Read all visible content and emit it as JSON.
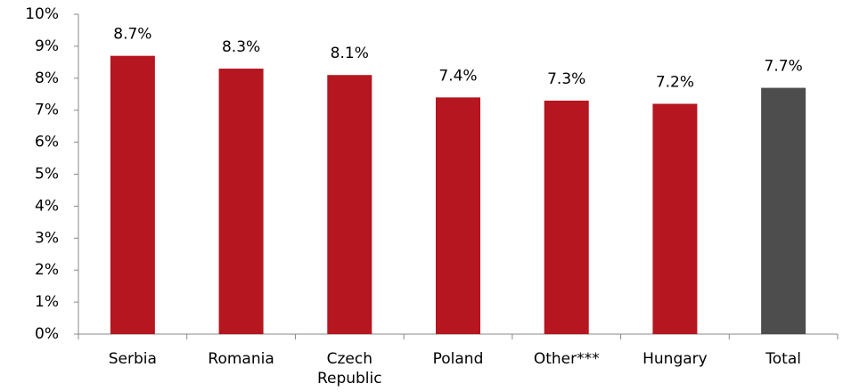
{
  "chart_data": {
    "type": "bar",
    "categories": [
      "Serbia",
      "Romania",
      "Czech Republic",
      "Poland",
      "Other***",
      "Hungary",
      "Total"
    ],
    "values": [
      8.7,
      8.3,
      8.1,
      7.4,
      7.3,
      7.2,
      7.7
    ],
    "value_labels": [
      "8.7%",
      "8.3%",
      "8.1%",
      "7.4%",
      "7.3%",
      "7.2%",
      "7.7%"
    ],
    "colors": [
      "#b5161f",
      "#b5161f",
      "#b5161f",
      "#b5161f",
      "#b5161f",
      "#b5161f",
      "#4d4d4d"
    ],
    "ylim": [
      0,
      10
    ],
    "yticks": [
      {
        "value": 0,
        "label": "0%"
      },
      {
        "value": 1,
        "label": "1%"
      },
      {
        "value": 2,
        "label": "2%"
      },
      {
        "value": 3,
        "label": "3%"
      },
      {
        "value": 4,
        "label": "4%"
      },
      {
        "value": 5,
        "label": "5%"
      },
      {
        "value": 6,
        "label": "6%"
      },
      {
        "value": 7,
        "label": "7%"
      },
      {
        "value": 8,
        "label": "8%"
      },
      {
        "value": 9,
        "label": "9%"
      },
      {
        "value": 10,
        "label": "10%"
      }
    ],
    "grid": false
  }
}
